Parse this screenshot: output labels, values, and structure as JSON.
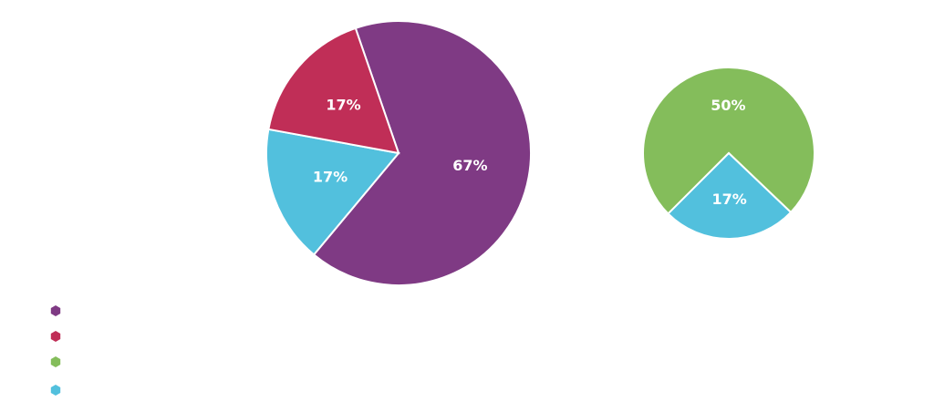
{
  "chart_data": [
    {
      "type": "pie",
      "values": [
        67,
        17,
        17
      ],
      "value_labels": [
        "67%",
        "17%",
        "17%"
      ],
      "colors": [
        "#7f3a84",
        "#52c0dd",
        "#c02e57"
      ]
    },
    {
      "type": "pie",
      "values": [
        50,
        17
      ],
      "value_labels": [
        "50%",
        "17%"
      ],
      "colors": [
        "#84bd5b",
        "#52c0dd"
      ]
    }
  ],
  "legend": {
    "colors": [
      "#7f3a84",
      "#c02e57",
      "#84bd5b",
      "#52c0dd"
    ]
  }
}
